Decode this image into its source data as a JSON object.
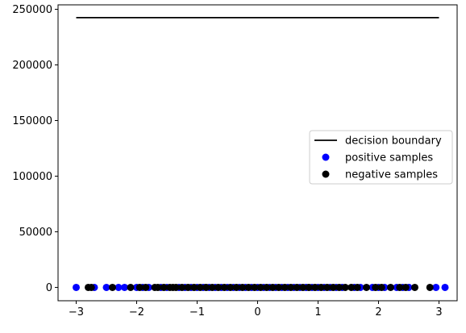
{
  "chart_data": {
    "type": "scatter",
    "title": "",
    "xlabel": "",
    "ylabel": "",
    "xlim": [
      -3.3,
      3.3
    ],
    "ylim": [
      -12000,
      254000
    ],
    "x_ticks": [
      -3,
      -2,
      -1,
      0,
      1,
      2,
      3
    ],
    "x_tick_labels": [
      "−3",
      "−2",
      "−1",
      "0",
      "1",
      "2",
      "3"
    ],
    "y_ticks": [
      0,
      50000,
      100000,
      150000,
      200000,
      250000
    ],
    "y_tick_labels": [
      "0",
      "50000",
      "100000",
      "150000",
      "200000",
      "250000"
    ],
    "grid": false,
    "legend_position": "center-right",
    "series": [
      {
        "name": "decision boundary",
        "kind": "line",
        "color": "#000000",
        "x": [
          -3,
          3
        ],
        "y": [
          242500,
          242500
        ]
      },
      {
        "name": "positive samples",
        "kind": "scatter",
        "color": "#0000ff",
        "x": [
          -3.0,
          -2.7,
          -2.5,
          -2.3,
          -2.2,
          -2.0,
          -1.9,
          -1.8,
          -1.6,
          -1.5,
          -1.3,
          -1.2,
          -1.1,
          -1.0,
          -0.9,
          -0.8,
          -0.7,
          -0.6,
          -0.5,
          -0.4,
          -0.3,
          -0.2,
          -0.1,
          0.0,
          0.1,
          0.2,
          0.3,
          0.4,
          0.5,
          0.6,
          0.7,
          0.8,
          0.9,
          1.0,
          1.1,
          1.2,
          1.3,
          1.4,
          1.6,
          1.7,
          1.9,
          2.0,
          2.1,
          2.3,
          2.4,
          2.5,
          2.95,
          3.1
        ],
        "y": [
          0,
          0,
          0,
          0,
          0,
          0,
          0,
          0,
          0,
          0,
          0,
          0,
          0,
          0,
          0,
          0,
          0,
          0,
          0,
          0,
          0,
          0,
          0,
          0,
          0,
          0,
          0,
          0,
          0,
          0,
          0,
          0,
          0,
          0,
          0,
          0,
          0,
          0,
          0,
          0,
          0,
          0,
          0,
          0,
          0,
          0,
          0,
          0
        ]
      },
      {
        "name": "negative samples",
        "kind": "scatter",
        "color": "#000000",
        "x": [
          -2.8,
          -2.75,
          -2.4,
          -2.1,
          -1.95,
          -1.85,
          -1.7,
          -1.65,
          -1.55,
          -1.45,
          -1.4,
          -1.35,
          -1.25,
          -1.15,
          -1.05,
          -0.95,
          -0.85,
          -0.75,
          -0.65,
          -0.55,
          -0.45,
          -0.35,
          -0.25,
          -0.15,
          -0.05,
          0.05,
          0.15,
          0.25,
          0.35,
          0.45,
          0.55,
          0.65,
          0.75,
          0.85,
          0.95,
          1.05,
          1.15,
          1.25,
          1.35,
          1.45,
          1.55,
          1.65,
          1.8,
          1.95,
          2.05,
          2.2,
          2.35,
          2.45,
          2.6,
          2.85
        ],
        "y": [
          0,
          0,
          0,
          0,
          0,
          0,
          0,
          0,
          0,
          0,
          0,
          0,
          0,
          0,
          0,
          0,
          0,
          0,
          0,
          0,
          0,
          0,
          0,
          0,
          0,
          0,
          0,
          0,
          0,
          0,
          0,
          0,
          0,
          0,
          0,
          0,
          0,
          0,
          0,
          0,
          0,
          0,
          0,
          0,
          0,
          0,
          0,
          0,
          0,
          0
        ]
      }
    ]
  }
}
